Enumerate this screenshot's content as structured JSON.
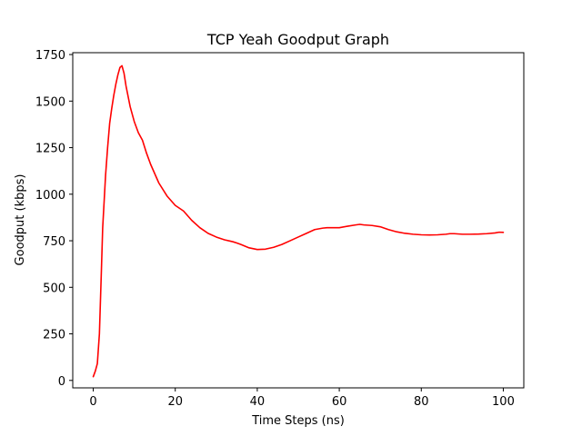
{
  "chart_data": {
    "type": "line",
    "title": "TCP Yeah Goodput Graph",
    "xlabel": "Time Steps (ns)",
    "ylabel": "Goodput (kbps)",
    "xlim": [
      -5,
      105
    ],
    "ylim": [
      -40,
      1760
    ],
    "xticks": [
      0,
      20,
      40,
      60,
      80,
      100
    ],
    "yticks": [
      0,
      250,
      500,
      750,
      1000,
      1250,
      1500,
      1750
    ],
    "grid": false,
    "series": [
      {
        "color": "#ff0000",
        "x": [
          0,
          0.5,
          1,
          1.5,
          2,
          2.3,
          2.5,
          3,
          3.5,
          4,
          4.5,
          5,
          5.5,
          6,
          6.5,
          7,
          7.5,
          8,
          9,
          10,
          11,
          12,
          13,
          14,
          16,
          18,
          20,
          22,
          24,
          26,
          28,
          30,
          32,
          34,
          35,
          36,
          38,
          40,
          42,
          44,
          46,
          48,
          50,
          52,
          54,
          56,
          57,
          60,
          62,
          64,
          65,
          66,
          68,
          70,
          72,
          74,
          76,
          78,
          80,
          82,
          84,
          86,
          87,
          88,
          90,
          92,
          94,
          96,
          98,
          99,
          100
        ],
        "y": [
          20,
          50,
          90,
          250,
          600,
          820,
          900,
          1100,
          1250,
          1380,
          1460,
          1530,
          1590,
          1640,
          1680,
          1690,
          1650,
          1580,
          1470,
          1390,
          1330,
          1290,
          1220,
          1160,
          1060,
          990,
          940,
          910,
          860,
          820,
          790,
          770,
          755,
          745,
          738,
          730,
          712,
          703,
          705,
          715,
          730,
          750,
          770,
          790,
          810,
          818,
          820,
          820,
          828,
          835,
          838,
          835,
          832,
          825,
          810,
          798,
          790,
          785,
          782,
          781,
          782,
          785,
          788,
          788,
          785,
          785,
          786,
          788,
          792,
          796,
          795
        ]
      }
    ]
  }
}
